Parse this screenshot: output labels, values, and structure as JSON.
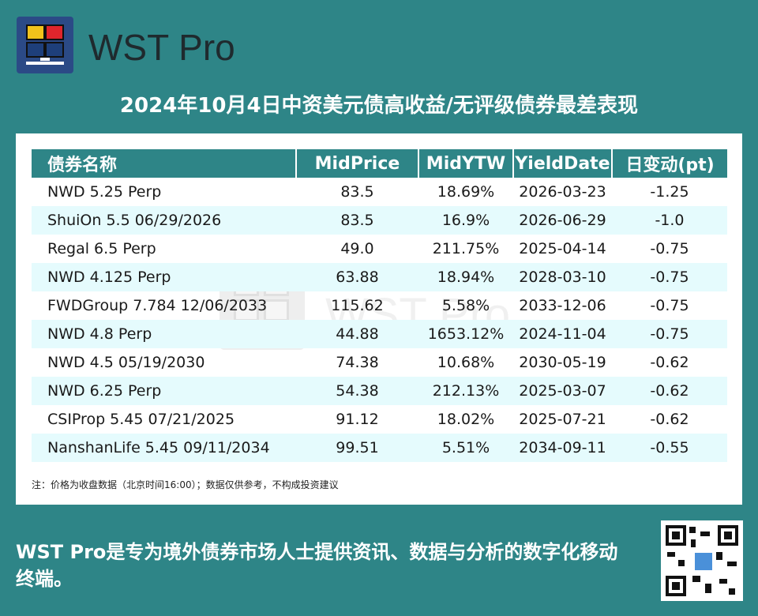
{
  "brand": {
    "name": "WST Pro"
  },
  "title": "2024年10月4日中资美元债高收益/无评级债券最差表现",
  "table": {
    "headers": [
      "债券名称",
      "MidPrice",
      "MidYTW",
      "YieldDate",
      "日变动(pt)"
    ],
    "rows": [
      [
        "NWD 5.25 Perp",
        "83.5",
        "18.69%",
        "2026-03-23",
        "-1.25"
      ],
      [
        "ShuiOn 5.5 06/29/2026",
        "83.5",
        "16.9%",
        "2026-06-29",
        "-1.0"
      ],
      [
        "Regal 6.5 Perp",
        "49.0",
        "211.75%",
        "2025-04-14",
        "-0.75"
      ],
      [
        "NWD 4.125 Perp",
        "63.88",
        "18.94%",
        "2028-03-10",
        "-0.75"
      ],
      [
        "FWDGroup 7.784 12/06/2033",
        "115.62",
        "5.58%",
        "2033-12-06",
        "-0.75"
      ],
      [
        "NWD 4.8 Perp",
        "44.88",
        "1653.12%",
        "2024-11-04",
        "-0.75"
      ],
      [
        "NWD 4.5 05/19/2030",
        "74.38",
        "10.68%",
        "2030-05-19",
        "-0.62"
      ],
      [
        "NWD 6.25 Perp",
        "54.38",
        "212.13%",
        "2025-03-07",
        "-0.62"
      ],
      [
        "CSIProp 5.45 07/21/2025",
        "91.12",
        "18.02%",
        "2025-07-21",
        "-0.62"
      ],
      [
        "NanshanLife 5.45 09/11/2034",
        "99.51",
        "5.51%",
        "2034-09-11",
        "-0.55"
      ]
    ]
  },
  "note": "注：价格为收盘数据（北京时间16:00）；数据仅供参考，不构成投资建议",
  "watermark": "WST Pro",
  "slogan": "WST Pro是专为境外债券市场人士提供资讯、数据与分析的数字化移动终端。",
  "colors": {
    "background": "#2e8587",
    "header": "#2e8587",
    "row_alt": "#e5fbfd",
    "logo_bg": "#2b4a86"
  }
}
